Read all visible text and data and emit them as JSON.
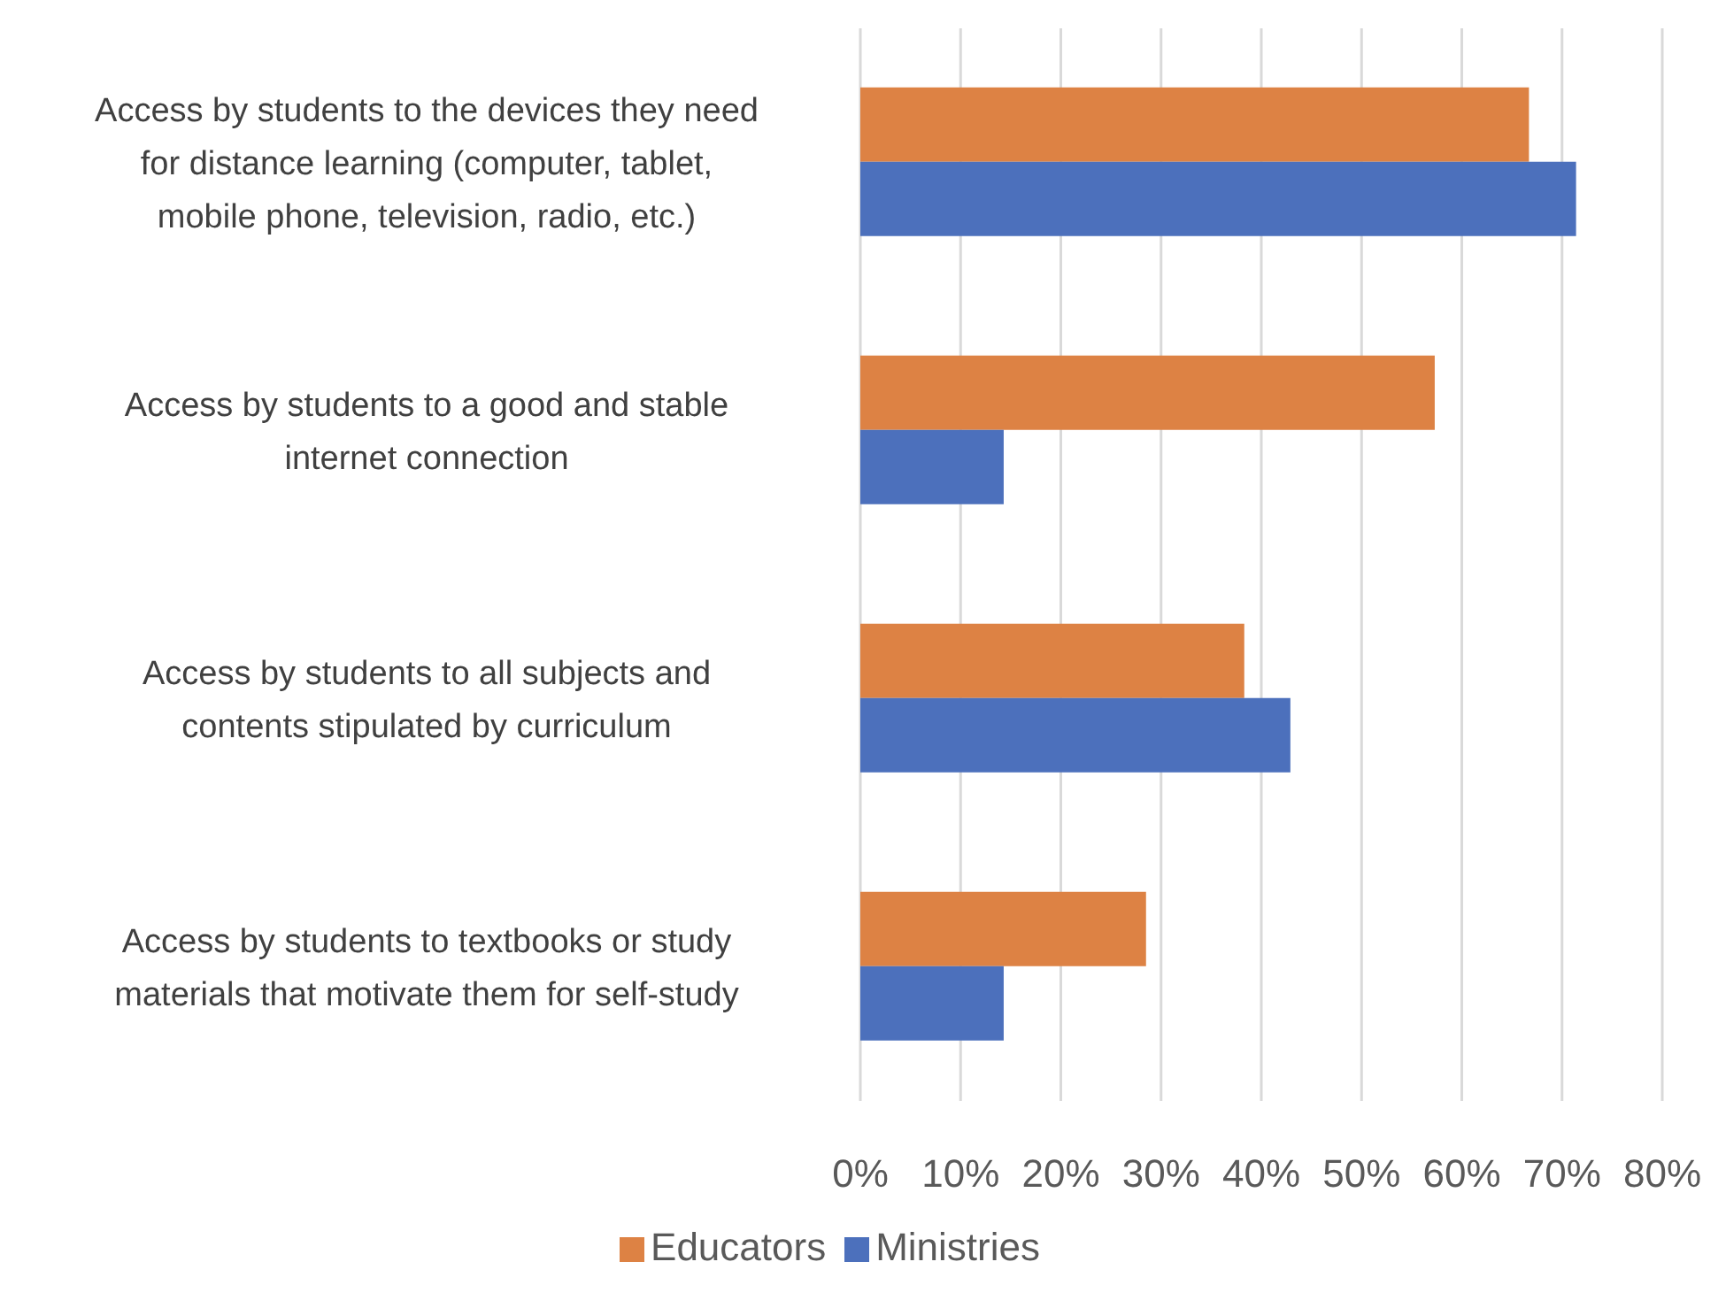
{
  "chart_data": {
    "type": "bar",
    "orientation": "horizontal",
    "categories": [
      "Access by students to the devices they need for distance learning (computer, tablet, mobile phone, television, radio, etc.)",
      "Access by students to a good and stable internet connection",
      "Access by students to all subjects and contents stipulated by curriculum",
      "Access by students to textbooks or study materials that motivate them for self-study"
    ],
    "series": [
      {
        "name": "Educators",
        "color": "#dd8244",
        "values": [
          66.7,
          57.3,
          38.3,
          28.5
        ]
      },
      {
        "name": "Ministries",
        "color": "#4c70bc",
        "values": [
          71.4,
          14.3,
          42.9,
          14.3
        ]
      }
    ],
    "xlim": [
      0,
      80
    ],
    "xticks": [
      {
        "value": 0,
        "label": "0%"
      },
      {
        "value": 10,
        "label": "10%"
      },
      {
        "value": 20,
        "label": "20%"
      },
      {
        "value": 30,
        "label": "30%"
      },
      {
        "value": 40,
        "label": "40%"
      },
      {
        "value": 50,
        "label": "50%"
      },
      {
        "value": 60,
        "label": "60%"
      },
      {
        "value": 70,
        "label": "70%"
      },
      {
        "value": 80,
        "label": "80%"
      }
    ],
    "grid": "x",
    "legend": "bottom"
  }
}
